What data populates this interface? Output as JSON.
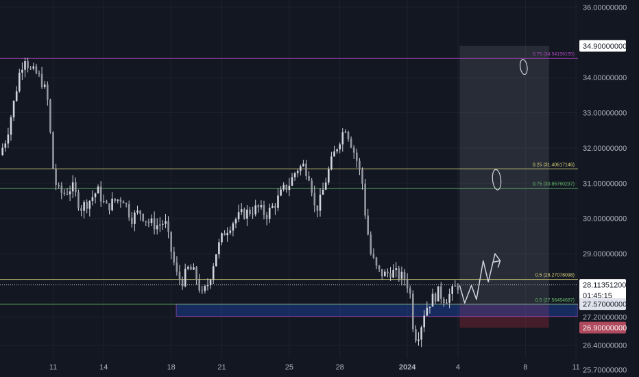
{
  "chart_data": {
    "type": "candlestick",
    "colors": {
      "background": "#131722",
      "candle": "#d1d4dc",
      "axis_text": "#b2b5be"
    },
    "y_axis": {
      "min": 25.5,
      "max": 36.2,
      "ticks": [
        {
          "value": 36.0,
          "label": "36.00000000"
        },
        {
          "value": 34.0,
          "label": "34.00000000"
        },
        {
          "value": 33.0,
          "label": "33.00000000"
        },
        {
          "value": 32.0,
          "label": "32.00000000"
        },
        {
          "value": 31.0,
          "label": "31.00000000"
        },
        {
          "value": 30.0,
          "label": "30.00000000"
        },
        {
          "value": 29.0,
          "label": "29.00000000"
        },
        {
          "value": 27.2,
          "label": "27.20000000"
        },
        {
          "value": 26.4,
          "label": "26.40000000"
        },
        {
          "value": 25.7,
          "label": "25.70000000"
        }
      ]
    },
    "x_axis": {
      "ticks": [
        {
          "day": 11,
          "label": "11",
          "bold": false
        },
        {
          "day": 14,
          "label": "14",
          "bold": false
        },
        {
          "day": 18,
          "label": "18",
          "bold": false
        },
        {
          "day": 21,
          "label": "21",
          "bold": false
        },
        {
          "day": 25,
          "label": "25",
          "bold": false
        },
        {
          "day": 28,
          "label": "28",
          "bold": false
        },
        {
          "day": 32,
          "label": "2024",
          "bold": true
        },
        {
          "day": 35,
          "label": "4",
          "bold": false
        },
        {
          "day": 39,
          "label": "8",
          "bold": false
        },
        {
          "day": 42,
          "label": "11",
          "bold": false
        }
      ]
    },
    "price_path": [
      [
        8.0,
        31.8
      ],
      [
        8.4,
        32.3
      ],
      [
        8.8,
        33.2
      ],
      [
        9.2,
        34.2
      ],
      [
        9.5,
        34.6
      ],
      [
        9.8,
        34.2
      ],
      [
        10.2,
        34.1
      ],
      [
        10.6,
        33.8
      ],
      [
        10.9,
        33.2
      ],
      [
        11.1,
        31.6
      ],
      [
        11.4,
        30.8
      ],
      [
        11.8,
        30.7
      ],
      [
        12.3,
        30.9
      ],
      [
        12.8,
        30.3
      ],
      [
        13.3,
        30.5
      ],
      [
        13.8,
        30.8
      ],
      [
        14.3,
        30.3
      ],
      [
        14.8,
        30.5
      ],
      [
        15.3,
        30.6
      ],
      [
        15.8,
        30.0
      ],
      [
        16.3,
        30.2
      ],
      [
        16.8,
        29.9
      ],
      [
        17.3,
        29.8
      ],
      [
        17.8,
        29.9
      ],
      [
        18.2,
        29.0
      ],
      [
        18.5,
        28.4
      ],
      [
        18.8,
        28.2
      ],
      [
        19.2,
        28.6
      ],
      [
        19.6,
        28.4
      ],
      [
        20.0,
        27.8
      ],
      [
        20.4,
        28.2
      ],
      [
        20.8,
        29.0
      ],
      [
        21.3,
        29.6
      ],
      [
        21.8,
        29.9
      ],
      [
        22.3,
        30.1
      ],
      [
        22.8,
        30.2
      ],
      [
        23.3,
        30.3
      ],
      [
        23.8,
        30.1
      ],
      [
        24.3,
        30.4
      ],
      [
        24.8,
        30.8
      ],
      [
        25.2,
        31.0
      ],
      [
        25.6,
        31.4
      ],
      [
        26.0,
        31.5
      ],
      [
        26.4,
        31.2
      ],
      [
        26.7,
        30.2
      ],
      [
        27.0,
        30.5
      ],
      [
        27.4,
        31.2
      ],
      [
        27.8,
        31.8
      ],
      [
        28.2,
        32.3
      ],
      [
        28.5,
        32.6
      ],
      [
        28.8,
        32.2
      ],
      [
        29.2,
        31.6
      ],
      [
        29.5,
        31.0
      ],
      [
        29.7,
        30.0
      ],
      [
        30.0,
        29.0
      ],
      [
        30.4,
        28.5
      ],
      [
        30.8,
        28.4
      ],
      [
        31.2,
        28.5
      ],
      [
        31.6,
        28.4
      ],
      [
        32.0,
        28.3
      ],
      [
        32.3,
        28.0
      ],
      [
        32.5,
        27.0
      ],
      [
        32.7,
        26.6
      ],
      [
        32.9,
        26.8
      ],
      [
        33.2,
        27.4
      ],
      [
        33.6,
        27.7
      ],
      [
        34.0,
        27.9
      ],
      [
        34.4,
        27.7
      ],
      [
        34.8,
        27.9
      ],
      [
        35.1,
        28.1
      ]
    ],
    "levels": [
      {
        "price": 34.54156195,
        "label": "0.75 (34.54156195)",
        "color": "#ab47bc"
      },
      {
        "price": 31.40617146,
        "label": "0.25 (31.40617146)",
        "color": "#dcd67a"
      },
      {
        "price": 30.85760237,
        "label": "0.75 (30.85760237)",
        "color": "#66bb6a"
      },
      {
        "price": 28.27078098,
        "label": "0.5 (28.27078098)",
        "color": "#dcd67a"
      },
      {
        "price": 27.56454687,
        "label": "0.5 (27.56454687)",
        "color": "#66bb6a"
      }
    ],
    "demand_zone": {
      "from_day": 18.3,
      "to_day": 45.0,
      "top": 27.57,
      "bottom": 27.22,
      "color": "#2962ff"
    },
    "position_box": {
      "from_day": 35.1,
      "to_day": 40.4,
      "target": 34.9,
      "entry": 27.57,
      "stop": 26.9,
      "profit_color": "#787b86",
      "loss_color": "#f23645"
    },
    "projection": [
      [
        35.1,
        28.1
      ],
      [
        35.4,
        27.6
      ],
      [
        35.8,
        28.1
      ],
      [
        36.1,
        27.7
      ],
      [
        36.5,
        28.8
      ],
      [
        36.8,
        28.2
      ],
      [
        37.2,
        29.0
      ],
      [
        37.5,
        28.8
      ]
    ],
    "price_labels": {
      "target": {
        "value": 34.9,
        "label": "34.90000000",
        "bg": "#ffffff",
        "fg": "#131722"
      },
      "current": {
        "value": 28.113512,
        "label": "28.11351200",
        "countdown": "01:45:15",
        "bg": "#ffffff",
        "fg": "#131722"
      },
      "entry": {
        "value": 27.57,
        "label": "27.57000000",
        "bg": "#e0e3eb",
        "fg": "#131722"
      },
      "stop": {
        "value": 26.9,
        "label": "26.90000000",
        "bg": "#b04a5e",
        "fg": "#ffffff"
      }
    }
  }
}
